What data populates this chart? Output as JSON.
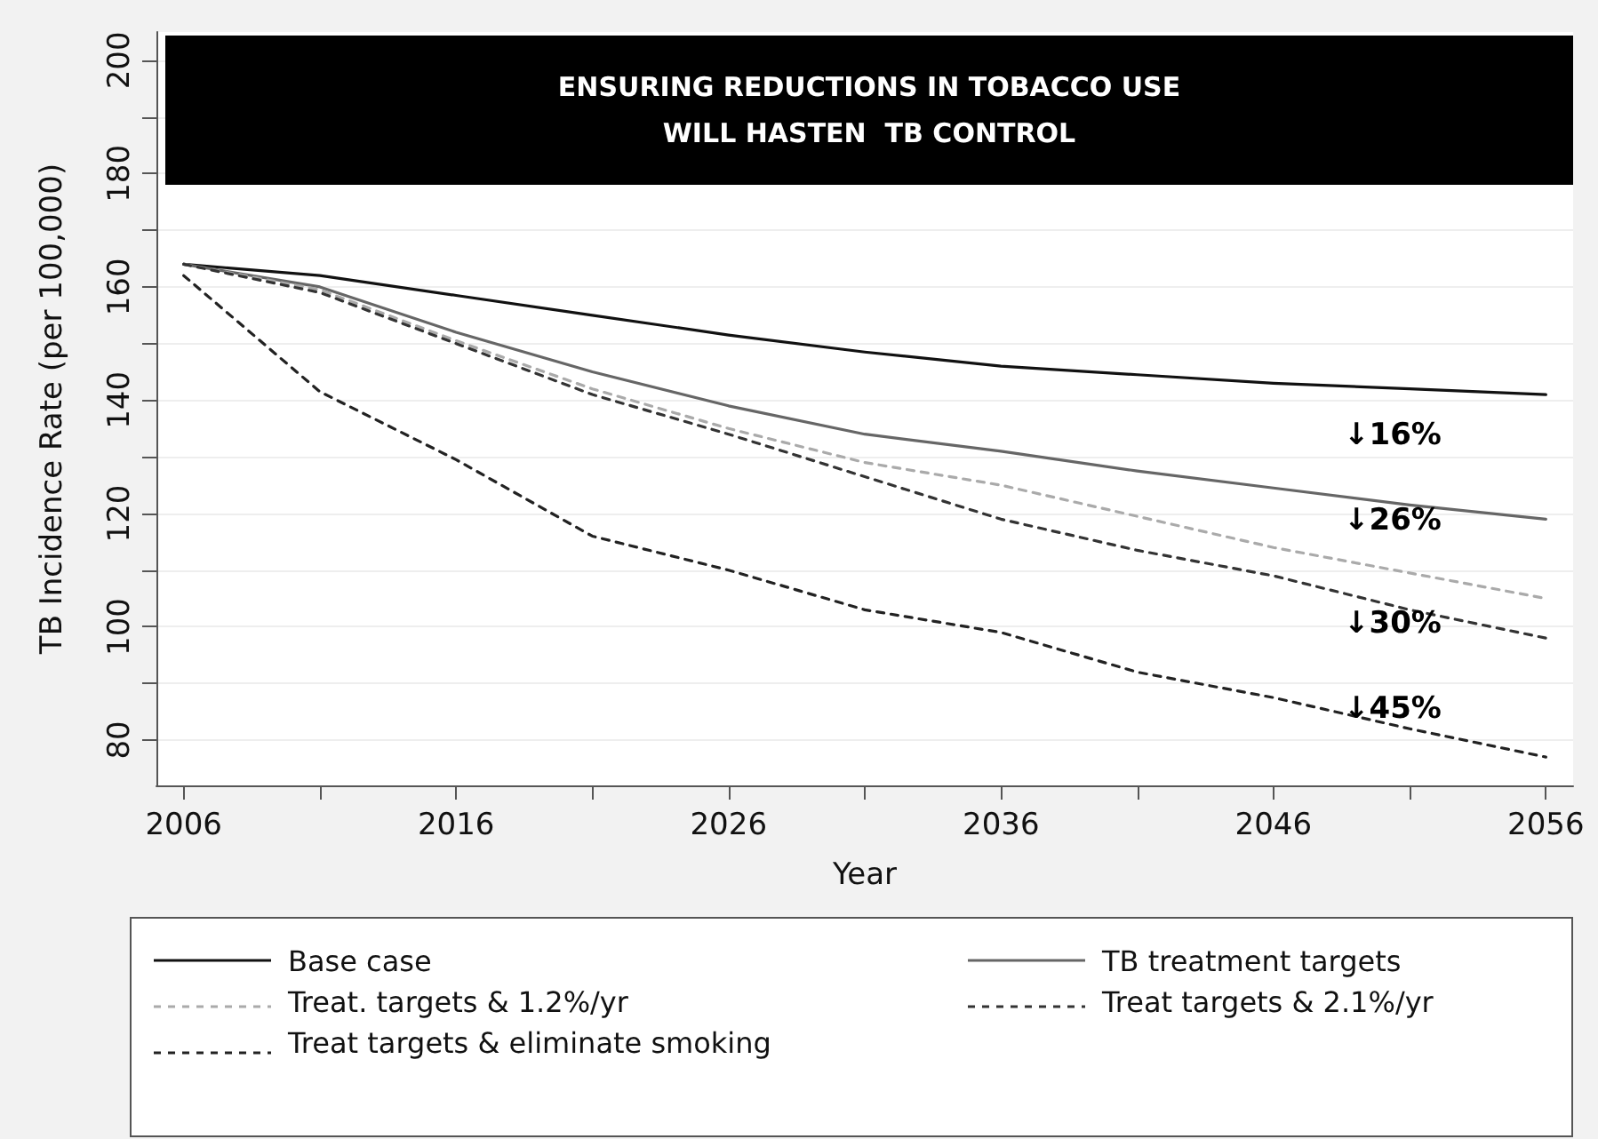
{
  "chart_data": {
    "type": "line",
    "title": "ENSURING REDUCTIONS IN TOBACCO USE\nWILL HASTEN  TB CONTROL",
    "xlabel": "Year",
    "ylabel": "TB Incidence Rate (per 100,000)",
    "x": [
      2006,
      2011,
      2016,
      2021,
      2026,
      2031,
      2036,
      2041,
      2046,
      2051,
      2056
    ],
    "series": [
      {
        "name": "Base case",
        "color": "#111111",
        "line_style": "solid",
        "values": [
          164,
          162,
          158.5,
          155,
          151.5,
          148.5,
          146,
          144.5,
          143,
          142,
          141
        ]
      },
      {
        "name": "TB treatment targets",
        "color": "#666666",
        "line_style": "solid",
        "values": [
          164,
          160,
          152,
          145,
          139,
          134,
          131,
          127.5,
          124.5,
          121.5,
          119
        ]
      },
      {
        "name": "Treat. targets & 1.2%/yr",
        "color": "#aaaaaa",
        "line_style": "dashed",
        "values": [
          164,
          159.5,
          150.5,
          142,
          135,
          129,
          125,
          119.5,
          114,
          109.5,
          105
        ]
      },
      {
        "name": "Treat targets & 2.1%/yr",
        "color": "#333333",
        "line_style": "dashed",
        "values": [
          164,
          159,
          150,
          141,
          134,
          126.5,
          119,
          113.5,
          109,
          103,
          98
        ]
      },
      {
        "name": "Treat targets & eliminate smoking",
        "color": "#222222",
        "line_style": "dashed",
        "values": [
          162,
          141.5,
          129.5,
          116,
          110,
          103,
          99,
          92,
          87.5,
          82,
          77
        ]
      }
    ],
    "xlim": [
      2005,
      2057
    ],
    "xticks": [
      2006,
      {
        "value": 2011,
        "label": null
      },
      2016,
      {
        "value": 2021,
        "label": null
      },
      2026,
      {
        "value": 2031,
        "label": null
      },
      2036,
      {
        "value": 2041,
        "label": null
      },
      2046,
      {
        "value": 2051,
        "label": null
      },
      2056
    ],
    "ylim": [
      72,
      205
    ],
    "yticks": [
      80,
      {
        "value": 90,
        "label": null
      },
      100,
      {
        "value": 110,
        "label": null
      },
      120,
      {
        "value": 130,
        "label": null
      },
      140,
      {
        "value": 150,
        "label": null
      },
      160,
      {
        "value": 170,
        "label": null
      },
      180,
      {
        "value": 190,
        "label": null
      },
      200
    ],
    "annotations": [
      "↓16%",
      "↓26%",
      "↓30%",
      "↓45%"
    ],
    "grid": "y",
    "legend": "bottom",
    "marker": "none"
  }
}
